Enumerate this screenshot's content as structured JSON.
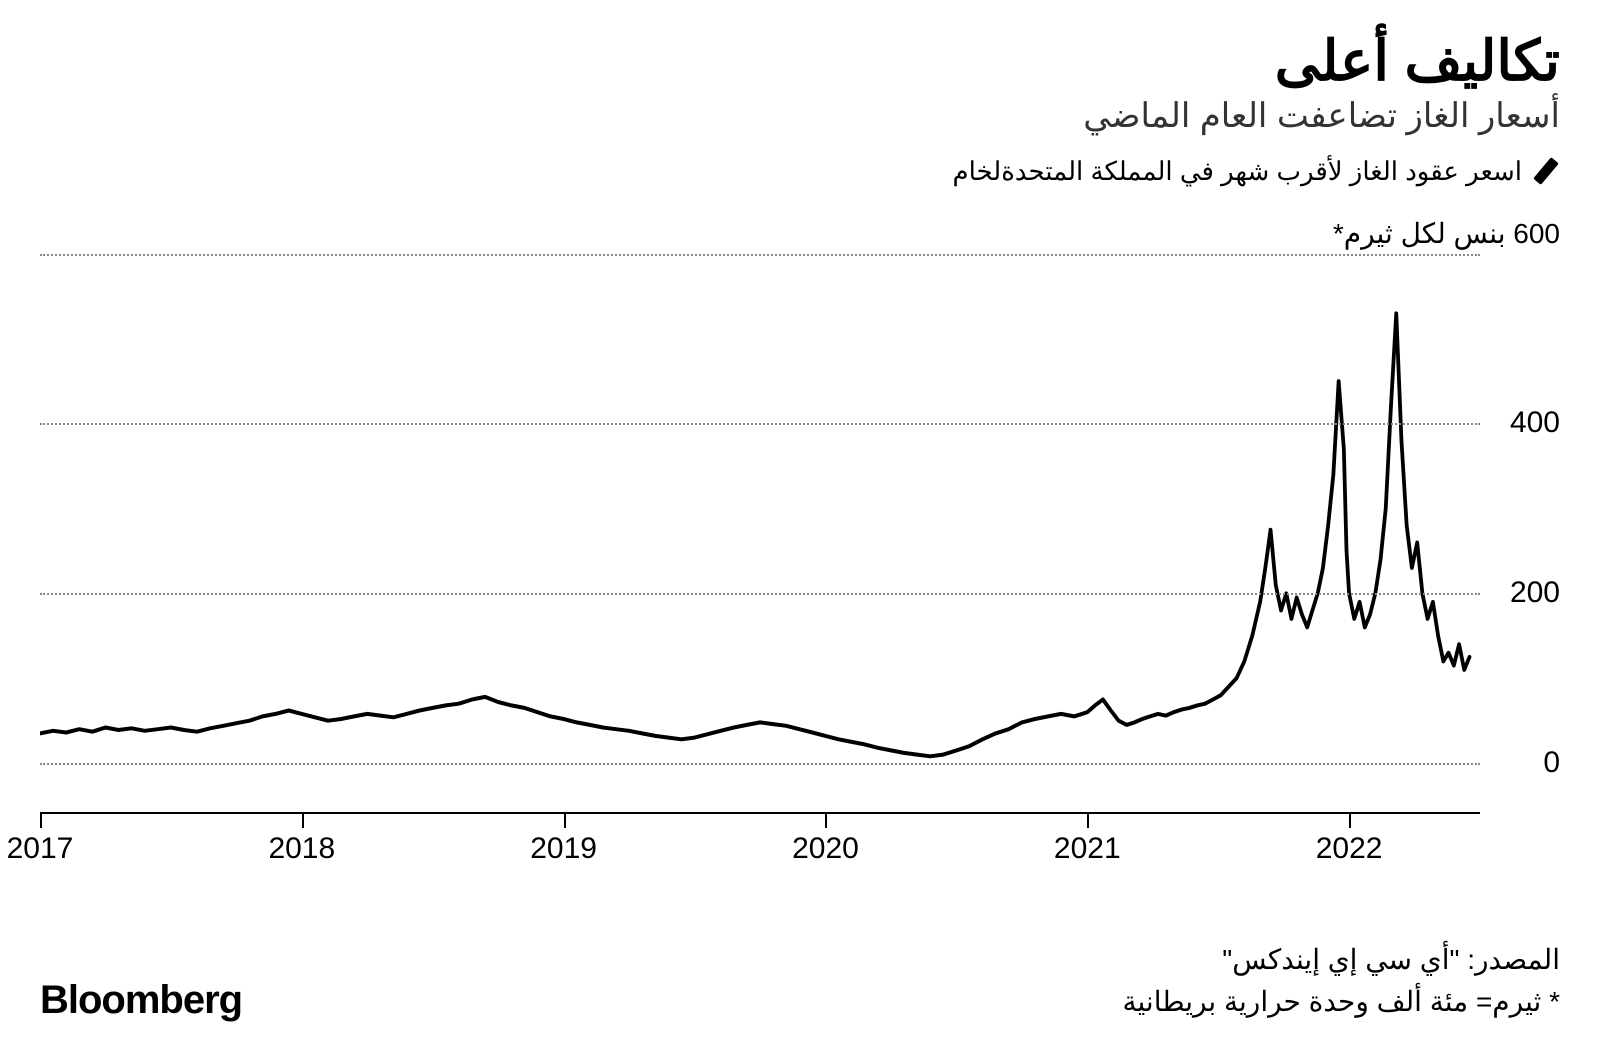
{
  "header": {
    "title": "تكاليف أعلى",
    "subtitle": "أسعار الغاز تضاعفت العام الماضي"
  },
  "legend": {
    "label": "اسعر عقود الغاز لأقرب شهر في المملكة المتحدةلخام"
  },
  "chart": {
    "type": "line",
    "y_unit_label": "600 بنس لكل ثيرم*",
    "ylim": [
      -60,
      600
    ],
    "gridlines_y": [
      0,
      200,
      400,
      600
    ],
    "y_tick_labels": {
      "0": "0",
      "200": "200",
      "400": "400"
    },
    "xlim": [
      2017,
      2022.5
    ],
    "x_ticks": [
      2017,
      2018,
      2019,
      2020,
      2021,
      2022
    ],
    "x_tick_labels": {
      "2017": "2017",
      "2018": "2018",
      "2019": "2019",
      "2020": "2020",
      "2021": "2021",
      "2022": "2022"
    },
    "line_color": "#000000",
    "line_width": 4,
    "grid_color": "#888888",
    "axis_color": "#000000",
    "background_color": "#ffffff",
    "values": [
      [
        2017.0,
        35
      ],
      [
        2017.05,
        38
      ],
      [
        2017.1,
        36
      ],
      [
        2017.15,
        40
      ],
      [
        2017.2,
        37
      ],
      [
        2017.25,
        42
      ],
      [
        2017.3,
        39
      ],
      [
        2017.35,
        41
      ],
      [
        2017.4,
        38
      ],
      [
        2017.45,
        40
      ],
      [
        2017.5,
        42
      ],
      [
        2017.55,
        39
      ],
      [
        2017.6,
        37
      ],
      [
        2017.65,
        41
      ],
      [
        2017.7,
        44
      ],
      [
        2017.75,
        47
      ],
      [
        2017.8,
        50
      ],
      [
        2017.85,
        55
      ],
      [
        2017.9,
        58
      ],
      [
        2017.95,
        62
      ],
      [
        2018.0,
        58
      ],
      [
        2018.05,
        54
      ],
      [
        2018.1,
        50
      ],
      [
        2018.15,
        52
      ],
      [
        2018.2,
        55
      ],
      [
        2018.25,
        58
      ],
      [
        2018.3,
        56
      ],
      [
        2018.35,
        54
      ],
      [
        2018.4,
        58
      ],
      [
        2018.45,
        62
      ],
      [
        2018.5,
        65
      ],
      [
        2018.55,
        68
      ],
      [
        2018.6,
        70
      ],
      [
        2018.65,
        75
      ],
      [
        2018.7,
        78
      ],
      [
        2018.75,
        72
      ],
      [
        2018.8,
        68
      ],
      [
        2018.85,
        65
      ],
      [
        2018.9,
        60
      ],
      [
        2018.95,
        55
      ],
      [
        2019.0,
        52
      ],
      [
        2019.05,
        48
      ],
      [
        2019.1,
        45
      ],
      [
        2019.15,
        42
      ],
      [
        2019.2,
        40
      ],
      [
        2019.25,
        38
      ],
      [
        2019.3,
        35
      ],
      [
        2019.35,
        32
      ],
      [
        2019.4,
        30
      ],
      [
        2019.45,
        28
      ],
      [
        2019.5,
        30
      ],
      [
        2019.55,
        34
      ],
      [
        2019.6,
        38
      ],
      [
        2019.65,
        42
      ],
      [
        2019.7,
        45
      ],
      [
        2019.75,
        48
      ],
      [
        2019.8,
        46
      ],
      [
        2019.85,
        44
      ],
      [
        2019.9,
        40
      ],
      [
        2019.95,
        36
      ],
      [
        2020.0,
        32
      ],
      [
        2020.05,
        28
      ],
      [
        2020.1,
        25
      ],
      [
        2020.15,
        22
      ],
      [
        2020.2,
        18
      ],
      [
        2020.25,
        15
      ],
      [
        2020.3,
        12
      ],
      [
        2020.35,
        10
      ],
      [
        2020.4,
        8
      ],
      [
        2020.45,
        10
      ],
      [
        2020.5,
        15
      ],
      [
        2020.55,
        20
      ],
      [
        2020.6,
        28
      ],
      [
        2020.65,
        35
      ],
      [
        2020.7,
        40
      ],
      [
        2020.75,
        48
      ],
      [
        2020.8,
        52
      ],
      [
        2020.85,
        55
      ],
      [
        2020.9,
        58
      ],
      [
        2020.95,
        55
      ],
      [
        2021.0,
        60
      ],
      [
        2021.03,
        68
      ],
      [
        2021.06,
        75
      ],
      [
        2021.09,
        62
      ],
      [
        2021.12,
        50
      ],
      [
        2021.15,
        45
      ],
      [
        2021.18,
        48
      ],
      [
        2021.21,
        52
      ],
      [
        2021.24,
        55
      ],
      [
        2021.27,
        58
      ],
      [
        2021.3,
        56
      ],
      [
        2021.33,
        60
      ],
      [
        2021.36,
        63
      ],
      [
        2021.39,
        65
      ],
      [
        2021.42,
        68
      ],
      [
        2021.45,
        70
      ],
      [
        2021.48,
        75
      ],
      [
        2021.51,
        80
      ],
      [
        2021.54,
        90
      ],
      [
        2021.57,
        100
      ],
      [
        2021.6,
        120
      ],
      [
        2021.63,
        150
      ],
      [
        2021.66,
        190
      ],
      [
        2021.68,
        230
      ],
      [
        2021.7,
        275
      ],
      [
        2021.72,
        210
      ],
      [
        2021.74,
        180
      ],
      [
        2021.76,
        200
      ],
      [
        2021.78,
        170
      ],
      [
        2021.8,
        195
      ],
      [
        2021.82,
        175
      ],
      [
        2021.84,
        160
      ],
      [
        2021.86,
        180
      ],
      [
        2021.88,
        200
      ],
      [
        2021.9,
        230
      ],
      [
        2021.92,
        280
      ],
      [
        2021.94,
        340
      ],
      [
        2021.96,
        450
      ],
      [
        2021.98,
        370
      ],
      [
        2021.99,
        250
      ],
      [
        2022.0,
        200
      ],
      [
        2022.02,
        170
      ],
      [
        2022.04,
        190
      ],
      [
        2022.06,
        160
      ],
      [
        2022.08,
        175
      ],
      [
        2022.1,
        200
      ],
      [
        2022.12,
        240
      ],
      [
        2022.14,
        300
      ],
      [
        2022.16,
        420
      ],
      [
        2022.18,
        530
      ],
      [
        2022.2,
        380
      ],
      [
        2022.22,
        280
      ],
      [
        2022.24,
        230
      ],
      [
        2022.26,
        260
      ],
      [
        2022.28,
        200
      ],
      [
        2022.3,
        170
      ],
      [
        2022.32,
        190
      ],
      [
        2022.34,
        150
      ],
      [
        2022.36,
        120
      ],
      [
        2022.38,
        130
      ],
      [
        2022.4,
        115
      ],
      [
        2022.42,
        140
      ],
      [
        2022.44,
        110
      ],
      [
        2022.46,
        125
      ]
    ]
  },
  "footer": {
    "source_line1": "المصدر: \"أي سي إي إيندكس\"",
    "source_line2": "* ثيرم= مئة ألف وحدة حرارية بريطانية",
    "brand": "Bloomberg"
  },
  "typography": {
    "title_fontsize": 56,
    "subtitle_fontsize": 34,
    "legend_fontsize": 26,
    "axis_label_fontsize": 30,
    "footer_fontsize": 28,
    "brand_fontsize": 40
  }
}
